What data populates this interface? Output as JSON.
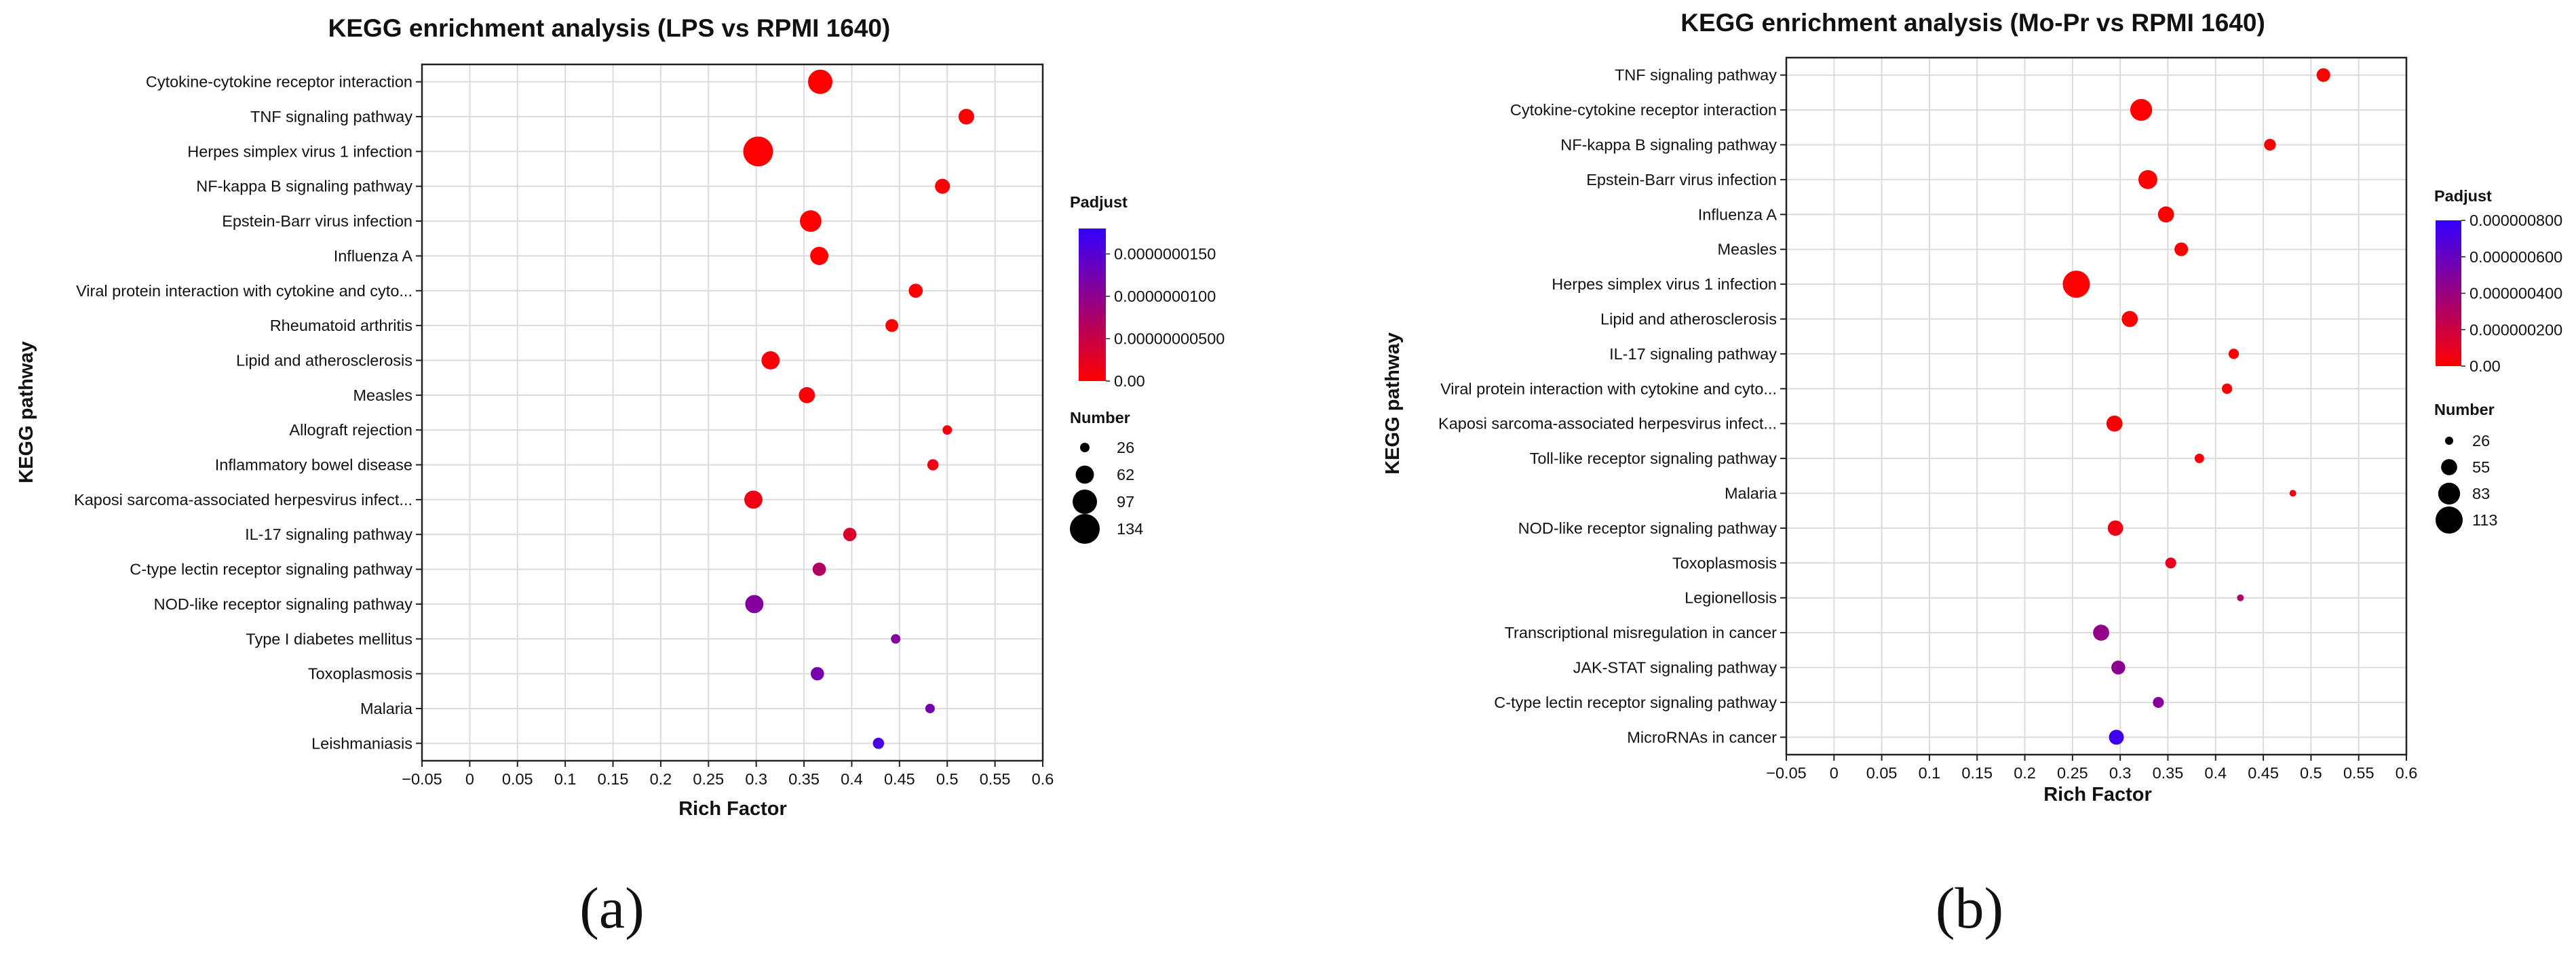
{
  "chart_data": [
    {
      "type": "scatter",
      "title": "KEGG enrichment analysis (LPS vs RPMI 1640)",
      "xlabel": "Rich Factor",
      "ylabel": "KEGG pathway",
      "xlim": [
        -0.05,
        0.6
      ],
      "x_ticks": [
        "−0.05",
        "0",
        "0.05",
        "0.1",
        "0.15",
        "0.2",
        "0.25",
        "0.3",
        "0.35",
        "0.4",
        "0.45",
        "0.5",
        "0.55",
        "0.6"
      ],
      "grid": true,
      "panel_label": "(a)",
      "color_legend": {
        "title": "Padjust",
        "range": [
          0,
          1.8e-08
        ],
        "labels": [
          "0.0000000150",
          "0.0000000100",
          "0.00000000500",
          "0.00"
        ],
        "label_values": [
          1.5e-08,
          1e-08,
          5e-09,
          0
        ],
        "low_color": "#ff0000",
        "high_color": "#3300ff"
      },
      "size_legend": {
        "title": "Number",
        "labels": [
          "26",
          "62",
          "97",
          "134"
        ],
        "values": [
          26,
          62,
          97,
          134
        ]
      },
      "points": [
        {
          "pathway": "Cytokine-cytokine receptor interaction",
          "rich_factor": 0.367,
          "number": 97,
          "padjust": 0
        },
        {
          "pathway": "TNF signaling pathway",
          "rich_factor": 0.52,
          "number": 50,
          "padjust": 0
        },
        {
          "pathway": "Herpes simplex virus 1 infection",
          "rich_factor": 0.302,
          "number": 134,
          "padjust": 0
        },
        {
          "pathway": "NF-kappa B signaling pathway",
          "rich_factor": 0.495,
          "number": 47,
          "padjust": 1e-10
        },
        {
          "pathway": "Epstein-Barr virus infection",
          "rich_factor": 0.357,
          "number": 80,
          "padjust": 1e-10
        },
        {
          "pathway": "Influenza A",
          "rich_factor": 0.366,
          "number": 62,
          "padjust": 1e-10
        },
        {
          "pathway": "Viral protein interaction with cytokine and cyto...",
          "rich_factor": 0.467,
          "number": 43,
          "padjust": 2e-10
        },
        {
          "pathway": "Rheumatoid arthritis",
          "rich_factor": 0.442,
          "number": 38,
          "padjust": 3e-10
        },
        {
          "pathway": "Lipid and atherosclerosis",
          "rich_factor": 0.315,
          "number": 62,
          "padjust": 4e-10
        },
        {
          "pathway": "Measles",
          "rich_factor": 0.353,
          "number": 52,
          "padjust": 5e-10
        },
        {
          "pathway": "Allograft rejection",
          "rich_factor": 0.5,
          "number": 26,
          "padjust": 1e-09
        },
        {
          "pathway": "Inflammatory bowel disease",
          "rich_factor": 0.485,
          "number": 32,
          "padjust": 1.5e-09
        },
        {
          "pathway": "Kaposi sarcoma-associated herpesvirus infect...",
          "rich_factor": 0.297,
          "number": 62,
          "padjust": 1.5e-09
        },
        {
          "pathway": "IL-17 signaling pathway",
          "rich_factor": 0.398,
          "number": 40,
          "padjust": 3e-09
        },
        {
          "pathway": "C-type lectin receptor signaling pathway",
          "rich_factor": 0.366,
          "number": 40,
          "padjust": 7e-09
        },
        {
          "pathway": "NOD-like receptor signaling pathway",
          "rich_factor": 0.298,
          "number": 62,
          "padjust": 1.1e-08
        },
        {
          "pathway": "Type I diabetes mellitus",
          "rich_factor": 0.446,
          "number": 26,
          "padjust": 1.1e-08
        },
        {
          "pathway": "Toxoplasmosis",
          "rich_factor": 0.364,
          "number": 40,
          "padjust": 1.2e-08
        },
        {
          "pathway": "Malaria",
          "rich_factor": 0.482,
          "number": 26,
          "padjust": 1.25e-08
        },
        {
          "pathway": "Leishmaniasis",
          "rich_factor": 0.428,
          "number": 32,
          "padjust": 1.6e-08
        }
      ]
    },
    {
      "type": "scatter",
      "title": "KEGG enrichment analysis (Mo-Pr vs RPMI 1640)",
      "xlabel": "Rich Factor",
      "ylabel": "KEGG pathway",
      "xlim": [
        -0.05,
        0.6
      ],
      "x_ticks": [
        "−0.05",
        "0",
        "0.05",
        "0.1",
        "0.15",
        "0.2",
        "0.25",
        "0.3",
        "0.35",
        "0.4",
        "0.45",
        "0.5",
        "0.55",
        "0.6"
      ],
      "grid": true,
      "panel_label": "(b)",
      "color_legend": {
        "title": "Padjust",
        "range": [
          0,
          8e-07
        ],
        "labels": [
          "0.000000800",
          "0.000000600",
          "0.000000400",
          "0.000000200",
          "0.00"
        ],
        "label_values": [
          8e-07,
          6e-07,
          4e-07,
          2e-07,
          0
        ],
        "low_color": "#ff0000",
        "high_color": "#3300ff"
      },
      "size_legend": {
        "title": "Number",
        "labels": [
          "26",
          "55",
          "83",
          "113"
        ],
        "values": [
          26,
          55,
          83,
          113
        ]
      },
      "points": [
        {
          "pathway": "TNF signaling pathway",
          "rich_factor": 0.513,
          "number": 45,
          "padjust": 0
        },
        {
          "pathway": "Cytokine-cytokine receptor interaction",
          "rich_factor": 0.322,
          "number": 83,
          "padjust": 0
        },
        {
          "pathway": "NF-kappa B signaling pathway",
          "rich_factor": 0.457,
          "number": 38,
          "padjust": 1e-09
        },
        {
          "pathway": "Epstein-Barr virus infection",
          "rich_factor": 0.329,
          "number": 68,
          "padjust": 2e-09
        },
        {
          "pathway": "Influenza A",
          "rich_factor": 0.348,
          "number": 55,
          "padjust": 3e-09
        },
        {
          "pathway": "Measles",
          "rich_factor": 0.364,
          "number": 45,
          "padjust": 4e-09
        },
        {
          "pathway": "Herpes simplex virus 1 infection",
          "rich_factor": 0.254,
          "number": 113,
          "padjust": 5e-09
        },
        {
          "pathway": "Lipid and atherosclerosis",
          "rich_factor": 0.31,
          "number": 55,
          "padjust": 6e-09
        },
        {
          "pathway": "IL-17 signaling pathway",
          "rich_factor": 0.419,
          "number": 33,
          "padjust": 1e-08
        },
        {
          "pathway": "Viral protein interaction with cytokine and cyto...",
          "rich_factor": 0.412,
          "number": 33,
          "padjust": 1.5e-08
        },
        {
          "pathway": "Kaposi sarcoma-associated herpesvirus infect...",
          "rich_factor": 0.294,
          "number": 55,
          "padjust": 2e-08
        },
        {
          "pathway": "Toll-like receptor signaling pathway",
          "rich_factor": 0.383,
          "number": 30,
          "padjust": 3e-08
        },
        {
          "pathway": "Malaria",
          "rich_factor": 0.481,
          "number": 22,
          "padjust": 5e-08
        },
        {
          "pathway": "NOD-like receptor signaling pathway",
          "rich_factor": 0.295,
          "number": 52,
          "padjust": 6e-08
        },
        {
          "pathway": "Toxoplasmosis",
          "rich_factor": 0.353,
          "number": 35,
          "padjust": 1e-07
        },
        {
          "pathway": "Legionellosis",
          "rich_factor": 0.426,
          "number": 22,
          "padjust": 3.2e-07
        },
        {
          "pathway": "Transcriptional misregulation in cancer",
          "rich_factor": 0.28,
          "number": 55,
          "padjust": 4.2e-07
        },
        {
          "pathway": "JAK-STAT signaling pathway",
          "rich_factor": 0.298,
          "number": 46,
          "padjust": 4.5e-07
        },
        {
          "pathway": "C-type lectin receptor signaling pathway",
          "rich_factor": 0.34,
          "number": 35,
          "padjust": 4.8e-07
        },
        {
          "pathway": "MicroRNAs in cancer",
          "rich_factor": 0.296,
          "number": 50,
          "padjust": 7.5e-07
        }
      ]
    }
  ]
}
